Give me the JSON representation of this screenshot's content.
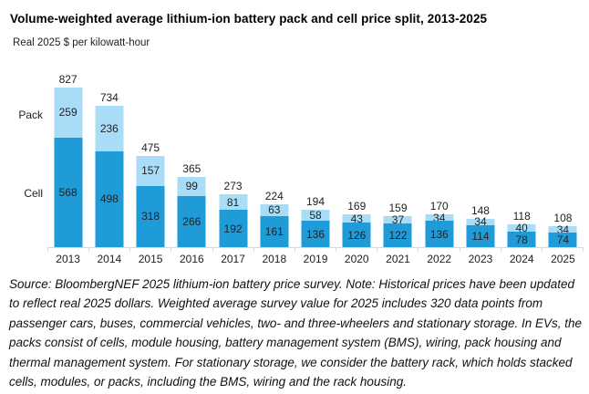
{
  "header": {
    "title": "Volume-weighted average lithium-ion battery pack and cell price split, 2013-2025",
    "subtitle": "Real 2025 $ per kilowatt-hour"
  },
  "axis_labels": {
    "pack": "Pack",
    "cell": "Cell"
  },
  "chart_data": {
    "type": "bar",
    "stacked": true,
    "title": "Volume-weighted average lithium-ion battery pack and cell price split, 2013-2025",
    "ylabel": "Real 2025 $ per kilowatt-hour",
    "xlabel": "",
    "grid": false,
    "legend_position": "left-gutter",
    "categories": [
      "2013",
      "2014",
      "2015",
      "2016",
      "2017",
      "2018",
      "2019",
      "2020",
      "2021",
      "2022",
      "2023",
      "2024",
      "2025"
    ],
    "series": [
      {
        "name": "Cell",
        "color": "#1f9bd8",
        "values": [
          568,
          498,
          318,
          266,
          192,
          161,
          136,
          126,
          122,
          136,
          114,
          78,
          74
        ]
      },
      {
        "name": "Pack",
        "color": "#a9dcf6",
        "values": [
          259,
          236,
          157,
          99,
          81,
          63,
          58,
          43,
          37,
          34,
          34,
          40,
          34
        ]
      }
    ],
    "totals": [
      827,
      734,
      475,
      365,
      273,
      224,
      194,
      169,
      159,
      170,
      148,
      118,
      108
    ],
    "ylim": [
      0,
      880
    ]
  },
  "colors": {
    "cell": "#1f9bd8",
    "pack": "#a9dcf6",
    "axis": "#d9d9d9",
    "label": "#222222"
  },
  "footer": {
    "lines": [
      "Source: BloombergNEF 2025 lithium-ion battery price survey. Note: Historical prices have been updated",
      "to reflect real 2025 dollars. Weighted average survey value for 2025 includes 320 data points from",
      "passenger cars, buses, commercial vehicles, two- and three-wheelers and stationary storage.  In EVs, the",
      "packs consist of cells, module housing, battery management system (BMS), wiring, pack housing and",
      "thermal management system. For stationary storage, we consider the battery rack, which holds stacked",
      "cells, modules, or packs, including the BMS, wiring and the rack housing."
    ]
  }
}
